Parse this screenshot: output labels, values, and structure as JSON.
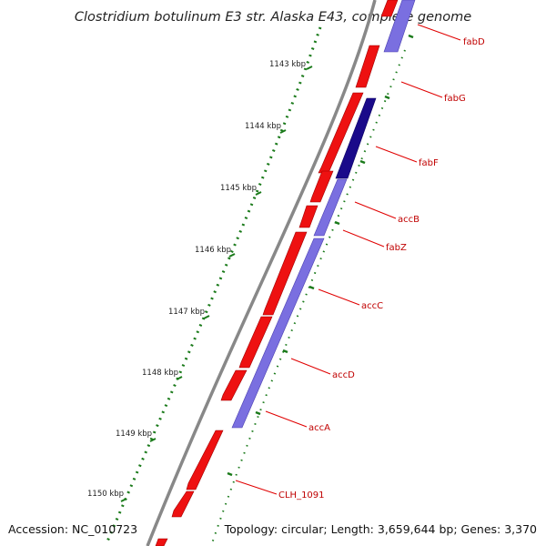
{
  "title": "Clostridium botulinum E3 str. Alaska E43, complete genome",
  "footer": {
    "accession": "Accession: NC_010723",
    "summary": "Topology: circular; Length: 3,659,644 bp; Genes: 3,370"
  },
  "colors": {
    "backbone": "#888888",
    "forward_gene": "#ee1111",
    "reverse_gene": "#7a6fe0",
    "reverse_gene_highlight": "#1a0a8a",
    "tick": "#1a7a1a",
    "label": "#cc0000",
    "leader": "#e00000"
  },
  "scale": {
    "unit": "kbp",
    "ticks": [
      "1143 kbp",
      "1144 kbp",
      "1145 kbp",
      "1146 kbp",
      "1147 kbp",
      "1148 kbp",
      "1149 kbp",
      "1150 kbp"
    ]
  },
  "gene_labels": [
    "fabD",
    "fabG",
    "fabF",
    "accB",
    "fabZ",
    "accC",
    "accD",
    "accA",
    "CLH_1091"
  ]
}
